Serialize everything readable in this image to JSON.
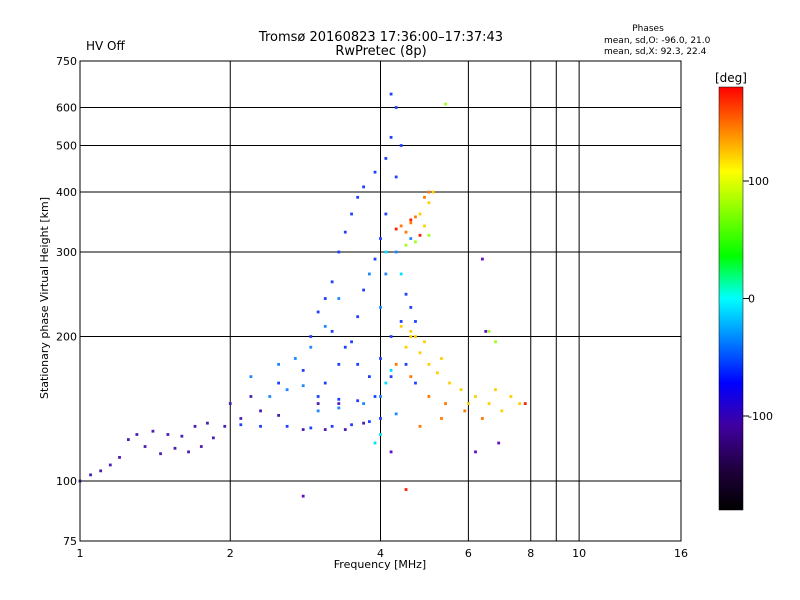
{
  "header": {
    "status_label": "HV Off",
    "status_color": "#cc0000",
    "title_line1": "Tromsø 20160823 17:36:00–17:37:43",
    "title_line2": "RwPretec (8p)",
    "phases_title": "Phases",
    "phases_line1": "mean, sd,O:  -96.0, 21.0",
    "phases_line2": "mean, sd,X:   92.3, 22.4"
  },
  "chart_data": {
    "type": "scatter",
    "xlabel": "Frequency [MHz]",
    "ylabel": "Stationary phase Virtual Height [km]",
    "x_scale": "log",
    "y_scale": "log",
    "xlim": [
      1,
      16
    ],
    "ylim": [
      75,
      750
    ],
    "x_ticks": [
      1,
      2,
      4,
      6,
      8,
      10,
      16
    ],
    "x_minor_ticks": [
      9
    ],
    "y_ticks": [
      75,
      100,
      200,
      300,
      400,
      500,
      600,
      750
    ],
    "grid": true,
    "colorbar": {
      "label": "[deg]",
      "range": [
        -180,
        180
      ],
      "ticks": [
        100,
        0,
        -100
      ],
      "colors": [
        "#ff0000",
        "#ff8000",
        "#ffff00",
        "#80ff00",
        "#00ff00",
        "#00ffff",
        "#0080ff",
        "#0000ff",
        "#4000a0",
        "#200040",
        "#000000"
      ]
    },
    "series": [
      {
        "color": "#2040ff",
        "points": [
          [
            2.1,
            131
          ],
          [
            2.3,
            130
          ],
          [
            2.6,
            130
          ],
          [
            2.9,
            129
          ],
          [
            3.2,
            130
          ],
          [
            3.5,
            131
          ],
          [
            3.8,
            133
          ],
          [
            4.0,
            135
          ],
          [
            2.5,
            160
          ],
          [
            2.8,
            170
          ],
          [
            2.9,
            200
          ],
          [
            3.0,
            225
          ],
          [
            3.1,
            240
          ],
          [
            3.2,
            260
          ],
          [
            3.3,
            300
          ],
          [
            3.4,
            330
          ],
          [
            3.5,
            360
          ],
          [
            3.6,
            390
          ],
          [
            3.7,
            410
          ],
          [
            3.9,
            440
          ],
          [
            4.1,
            470
          ],
          [
            4.2,
            520
          ],
          [
            4.3,
            600
          ],
          [
            4.2,
            640
          ],
          [
            4.4,
            500
          ],
          [
            4.3,
            430
          ],
          [
            4.1,
            360
          ],
          [
            4.0,
            320
          ],
          [
            3.9,
            290
          ],
          [
            3.7,
            250
          ],
          [
            3.6,
            220
          ],
          [
            3.5,
            195
          ],
          [
            3.3,
            175
          ],
          [
            3.1,
            160
          ],
          [
            3.0,
            150
          ],
          [
            3.3,
            148
          ],
          [
            3.6,
            147
          ],
          [
            3.9,
            150
          ],
          [
            4.2,
            165
          ],
          [
            4.5,
            175
          ],
          [
            4.7,
            160
          ],
          [
            4.5,
            245
          ],
          [
            4.6,
            230
          ],
          [
            4.7,
            215
          ],
          [
            3.2,
            205
          ],
          [
            3.4,
            190
          ],
          [
            3.6,
            175
          ],
          [
            3.8,
            165
          ],
          [
            4.0,
            180
          ],
          [
            4.2,
            200
          ],
          [
            4.4,
            215
          ]
        ]
      },
      {
        "color": "#1e88ff",
        "points": [
          [
            2.4,
            150
          ],
          [
            2.6,
            155
          ],
          [
            2.8,
            158
          ],
          [
            3.0,
            140
          ],
          [
            3.3,
            142
          ],
          [
            3.7,
            145
          ],
          [
            4.0,
            150
          ],
          [
            4.3,
            138
          ],
          [
            2.7,
            180
          ],
          [
            2.9,
            190
          ],
          [
            3.1,
            210
          ],
          [
            3.3,
            240
          ],
          [
            3.8,
            270
          ],
          [
            4.0,
            230
          ],
          [
            4.1,
            270
          ],
          [
            4.3,
            300
          ],
          [
            4.6,
            320
          ],
          [
            2.5,
            175
          ],
          [
            2.2,
            165
          ]
        ]
      },
      {
        "color": "#4b20b0",
        "points": [
          [
            1.0,
            100
          ],
          [
            1.05,
            103
          ],
          [
            1.1,
            105
          ],
          [
            1.15,
            108
          ],
          [
            1.2,
            112
          ],
          [
            1.25,
            122
          ],
          [
            1.3,
            125
          ],
          [
            1.35,
            118
          ],
          [
            1.45,
            114
          ],
          [
            1.55,
            117
          ],
          [
            1.65,
            115
          ],
          [
            1.75,
            118
          ],
          [
            1.85,
            123
          ],
          [
            1.95,
            130
          ],
          [
            2.1,
            135
          ],
          [
            2.3,
            140
          ],
          [
            2.5,
            137
          ],
          [
            2.8,
            128
          ],
          [
            3.1,
            128
          ],
          [
            3.4,
            128
          ],
          [
            3.7,
            132
          ],
          [
            3.0,
            145
          ],
          [
            3.3,
            145
          ],
          [
            1.4,
            127
          ],
          [
            1.5,
            125
          ],
          [
            1.6,
            124
          ],
          [
            1.7,
            130
          ],
          [
            1.8,
            132
          ],
          [
            2.0,
            145
          ],
          [
            2.2,
            150
          ]
        ]
      },
      {
        "color": "#ffd000",
        "points": [
          [
            4.5,
            190
          ],
          [
            4.6,
            200
          ],
          [
            4.8,
            185
          ],
          [
            5.0,
            175
          ],
          [
            5.2,
            168
          ],
          [
            5.5,
            160
          ],
          [
            5.8,
            155
          ],
          [
            6.2,
            150
          ],
          [
            6.6,
            145
          ],
          [
            7.0,
            140
          ],
          [
            7.3,
            150
          ],
          [
            7.6,
            145
          ],
          [
            4.8,
            360
          ],
          [
            4.9,
            340
          ],
          [
            5.0,
            380
          ],
          [
            5.1,
            400
          ],
          [
            4.4,
            210
          ],
          [
            4.6,
            205
          ],
          [
            5.3,
            180
          ],
          [
            6.0,
            145
          ],
          [
            6.8,
            155
          ],
          [
            4.7,
            200
          ],
          [
            4.9,
            195
          ]
        ]
      },
      {
        "color": "#ff7a00",
        "points": [
          [
            4.4,
            340
          ],
          [
            4.6,
            345
          ],
          [
            4.7,
            355
          ],
          [
            4.9,
            390
          ],
          [
            5.0,
            400
          ],
          [
            4.5,
            330
          ],
          [
            4.3,
            175
          ],
          [
            4.6,
            165
          ],
          [
            5.0,
            150
          ],
          [
            5.4,
            145
          ],
          [
            5.9,
            140
          ],
          [
            6.4,
            135
          ],
          [
            4.8,
            130
          ],
          [
            5.3,
            135
          ]
        ]
      },
      {
        "color": "#ff2000",
        "points": [
          [
            4.3,
            335
          ],
          [
            4.6,
            350
          ],
          [
            4.8,
            325
          ],
          [
            7.8,
            145
          ],
          [
            4.5,
            96
          ]
        ]
      },
      {
        "color": "#a0ff20",
        "points": [
          [
            4.5,
            310
          ],
          [
            4.7,
            315
          ],
          [
            5.0,
            325
          ],
          [
            6.6,
            205
          ],
          [
            6.8,
            195
          ],
          [
            5.4,
            610
          ]
        ]
      },
      {
        "color": "#00e0ff",
        "points": [
          [
            3.9,
            120
          ],
          [
            4.1,
            160
          ],
          [
            4.2,
            170
          ],
          [
            4.0,
            125
          ],
          [
            4.4,
            270
          ],
          [
            4.1,
            300
          ]
        ]
      },
      {
        "color": "#6010c0",
        "points": [
          [
            2.8,
            93
          ],
          [
            4.2,
            115
          ],
          [
            6.2,
            115
          ],
          [
            6.9,
            120
          ],
          [
            6.5,
            205
          ],
          [
            6.4,
            290
          ]
        ]
      }
    ]
  }
}
